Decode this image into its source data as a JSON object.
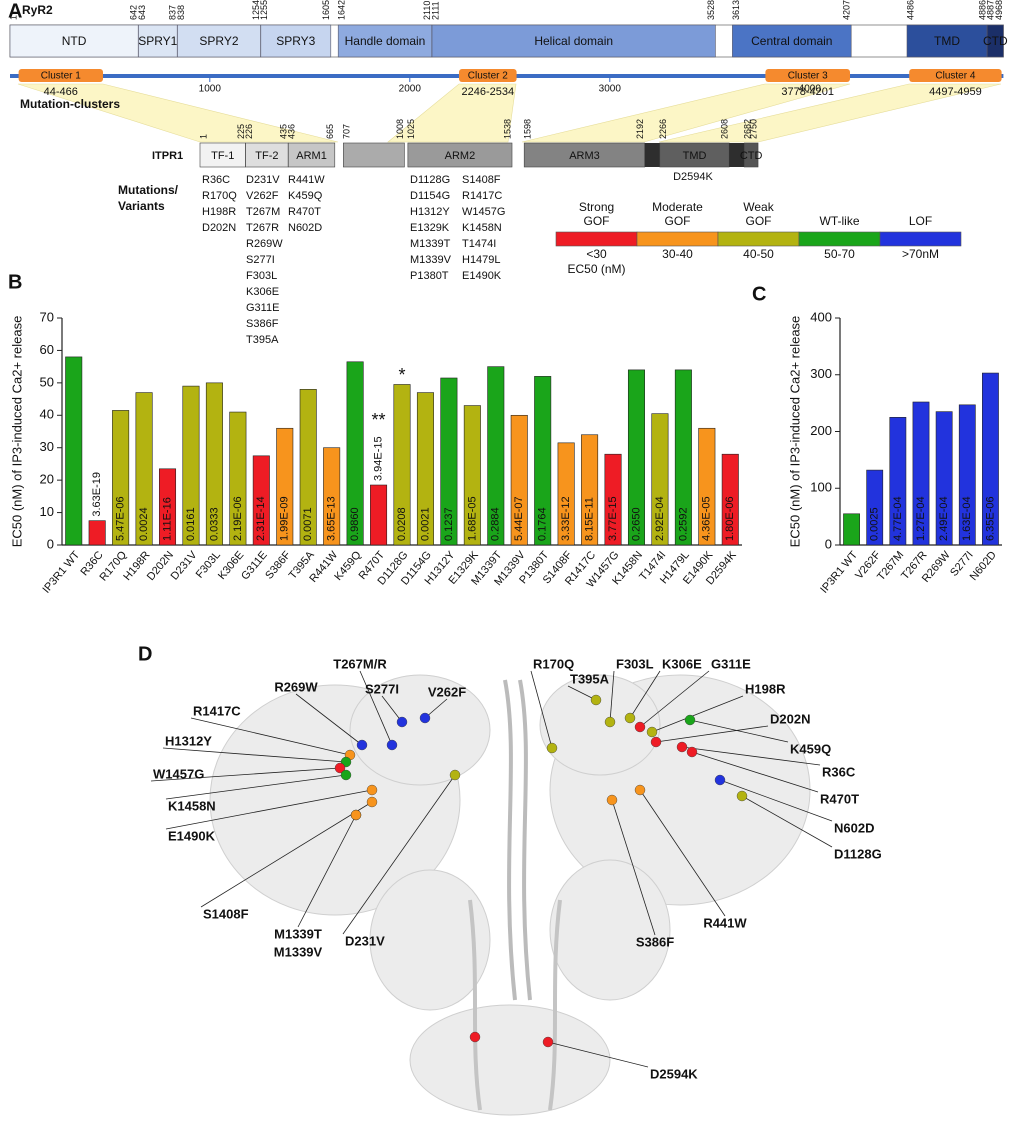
{
  "panel_labels": [
    "A",
    "B",
    "C",
    "D"
  ],
  "ryr2": {
    "name": "RyR2",
    "domains": [
      {
        "label": "NTD",
        "start": 1,
        "end": 642,
        "color": "#eef3fa"
      },
      {
        "label": "SPRY1",
        "start": 643,
        "end": 837,
        "color": "#dbe5f4"
      },
      {
        "label": "SPRY2",
        "start": 838,
        "end": 1254,
        "color": "#d2def2"
      },
      {
        "label": "SPRY3",
        "start": 1255,
        "end": 1605,
        "color": "#c6d5ef"
      },
      {
        "label": "Handle domain",
        "start": 1642,
        "end": 2110,
        "color": "#8eaadf"
      },
      {
        "label": "Helical domain",
        "start": 2111,
        "end": 3528,
        "color": "#7c9bd8"
      },
      {
        "label": "Central domain",
        "start": 3613,
        "end": 4207,
        "color": "#4b74c5"
      },
      {
        "label": "TMD",
        "start": 4486,
        "end": 4886,
        "color": "#2c4f9c"
      },
      {
        "label": "CTD",
        "start": 4887,
        "end": 4968,
        "color": "#1b2f68"
      }
    ],
    "axis_ticks": [
      1000,
      2000,
      3000,
      4000
    ],
    "axis_color": "#3b6cc4",
    "cluster_title": "Mutation-clusters",
    "cluster_color": "#f58a2e",
    "clusters": [
      {
        "label": "Cluster 1",
        "range": "44-466",
        "start": 44,
        "end": 466
      },
      {
        "label": "Cluster 2",
        "range": "2246-2534",
        "start": 2246,
        "end": 2534
      },
      {
        "label": "Cluster 3",
        "range": "3778-4201",
        "start": 3778,
        "end": 4201
      },
      {
        "label": "Cluster 4",
        "range": "4497-4959",
        "start": 4497,
        "end": 4959
      }
    ]
  },
  "itpr1": {
    "name": "ITPR1",
    "domains": [
      {
        "label": "TF-1",
        "start": 1,
        "end": 225,
        "color": "#f2f2f2"
      },
      {
        "label": "TF-2",
        "start": 226,
        "end": 435,
        "color": "#dedede"
      },
      {
        "label": "ARM1",
        "start": 436,
        "end": 665,
        "color": "#c6c6c6"
      },
      {
        "label": null,
        "start": 707,
        "end": 1008,
        "color": "#ababab"
      },
      {
        "label": "ARM2",
        "start": 1025,
        "end": 1538,
        "color": "#9a9a9a"
      },
      {
        "label": "ARM3",
        "start": 1598,
        "end": 2192,
        "color": "#838383"
      },
      {
        "label": "TMD",
        "start": 2266,
        "end": 2608,
        "color": "#5f5f5f",
        "gap_before_color": "#2e2e2e"
      },
      {
        "label": "CTD",
        "start": 2682,
        "end": 2750,
        "color": "#555555",
        "gap_before_color": "#2e2e2e"
      }
    ],
    "tmd_mutation": {
      "name": "D2594K",
      "color": "#ee1c25"
    }
  },
  "mutation_title": [
    "Mutations/",
    "Variants"
  ],
  "mutation_columns": [
    [
      {
        "name": "R36C",
        "color": "#ee1c25"
      },
      {
        "name": "R170Q",
        "color": "#b3b311"
      },
      {
        "name": "H198R",
        "color": "#b3b311"
      },
      {
        "name": "D202N",
        "color": "#ee1c25"
      }
    ],
    [
      {
        "name": "D231V",
        "color": "#b3b311"
      },
      {
        "name": "V262F",
        "color": "#2233dd"
      },
      {
        "name": "T267M",
        "color": "#2233dd"
      },
      {
        "name": "T267R",
        "color": "#2233dd"
      },
      {
        "name": "R269W",
        "color": "#2233dd"
      },
      {
        "name": "S277I",
        "color": "#2233dd"
      },
      {
        "name": "F303L",
        "color": "#b3b311"
      },
      {
        "name": "K306E",
        "color": "#b3b311"
      },
      {
        "name": "G311E",
        "color": "#ee1c25"
      },
      {
        "name": "S386F",
        "color": "#f7941d"
      },
      {
        "name": "T395A",
        "color": "#b3b311"
      }
    ],
    [
      {
        "name": "R441W",
        "color": "#f7941d"
      },
      {
        "name": "K459Q",
        "color": "#1aa51a"
      },
      {
        "name": "R470T",
        "color": "#ee1c25"
      },
      {
        "name": "N602D",
        "color": "#2233dd"
      }
    ],
    [
      {
        "name": "D1128G",
        "color": "#b3b311"
      },
      {
        "name": "D1154G",
        "color": "#b3b311"
      },
      {
        "name": "H1312Y",
        "color": "#1aa51a"
      },
      {
        "name": "E1329K",
        "color": "#b3b311"
      },
      {
        "name": "M1339T",
        "color": "#1aa51a"
      },
      {
        "name": "M1339V",
        "color": "#f7941d"
      },
      {
        "name": "P1380T",
        "color": "#1aa51a"
      }
    ],
    [
      {
        "name": "S1408F",
        "color": "#f7941d"
      },
      {
        "name": "R1417C",
        "color": "#f7941d"
      },
      {
        "name": "W1457G",
        "color": "#ee1c25"
      },
      {
        "name": "K1458N",
        "color": "#1aa51a"
      },
      {
        "name": "T1474I",
        "color": "#b3b311"
      },
      {
        "name": "H1479L",
        "color": "#1aa51a"
      },
      {
        "name": "E1490K",
        "color": "#f7941d"
      }
    ]
  ],
  "legend": {
    "unit": "EC50 (nM)",
    "items": [
      {
        "lines": [
          "Strong",
          "GOF"
        ],
        "range": "<30",
        "color": "#ee1c25"
      },
      {
        "lines": [
          "Moderate",
          "GOF"
        ],
        "range": "30-40",
        "color": "#f7941d"
      },
      {
        "lines": [
          "Weak",
          "GOF"
        ],
        "range": "40-50",
        "color": "#b3b311"
      },
      {
        "lines": [
          "WT-like"
        ],
        "range": "50-70",
        "color": "#1aa51a"
      },
      {
        "lines": [
          "LOF"
        ],
        "range": ">70nM",
        "color": "#2233dd"
      }
    ]
  },
  "chart_data": [
    {
      "type": "bar",
      "ylabel": "EC50 (nM) of IP3-induced Ca2+ release",
      "categories": [
        "IP3R1 WT",
        "R36C",
        "R170Q",
        "H198R",
        "D202N",
        "D231V",
        "F303L",
        "K306E",
        "G311E",
        "S386F",
        "T395A",
        "R441W",
        "K459Q",
        "R470T",
        "D1128G",
        "D1154G",
        "H1312Y",
        "E1329K",
        "M1339T",
        "M1339V",
        "P1380T",
        "S1408F",
        "R1417C",
        "W1457G",
        "K1458N",
        "T1474I",
        "H1479L",
        "E1490K",
        "D2594K"
      ],
      "values": [
        58,
        7.5,
        41.5,
        47,
        23.5,
        49,
        50,
        41,
        27.5,
        36,
        48,
        30,
        56.5,
        18.5,
        49.5,
        47,
        51.5,
        43,
        55,
        40,
        52,
        31.5,
        34,
        28,
        54,
        40.5,
        54,
        36,
        28
      ],
      "colors": [
        "#1aa51a",
        "#ee1c25",
        "#b3b311",
        "#b3b311",
        "#ee1c25",
        "#b3b311",
        "#b3b311",
        "#b3b311",
        "#ee1c25",
        "#f7941d",
        "#b3b311",
        "#f7941d",
        "#1aa51a",
        "#ee1c25",
        "#b3b311",
        "#b3b311",
        "#1aa51a",
        "#b3b311",
        "#1aa51a",
        "#f7941d",
        "#1aa51a",
        "#f7941d",
        "#f7941d",
        "#ee1c25",
        "#1aa51a",
        "#b3b311",
        "#1aa51a",
        "#f7941d",
        "#ee1c25"
      ],
      "p_values": [
        null,
        "3.63E-19",
        "5.47E-06",
        "0.0024",
        "1.11E-16",
        "0.0161",
        "0.0333",
        "2.19E-06",
        "2.31E-14",
        "1.99E-09",
        "0.0071",
        "3.65E-13",
        "0.9860",
        "3.94E-15",
        "0.0208",
        "0.0021",
        "0.1237",
        "1.68E-05",
        "0.2884",
        "5.44E-07",
        "0.1764",
        "3.33E-12",
        "8.15E-11",
        "3.77E-15",
        "0.2650",
        "2.92E-04",
        "0.2592",
        "4.36E-05",
        "1.80E-06"
      ],
      "significance": [
        null,
        null,
        null,
        null,
        null,
        null,
        null,
        null,
        null,
        null,
        null,
        null,
        null,
        "**",
        "*",
        null,
        null,
        null,
        null,
        null,
        null,
        null,
        null,
        null,
        null,
        null,
        null,
        null,
        null
      ],
      "p_value_color": "#111111",
      "ylim": [
        0,
        70
      ],
      "yticks": [
        0,
        10,
        20,
        30,
        40,
        50,
        60,
        70
      ]
    },
    {
      "type": "bar",
      "ylabel": "EC50 (nM) of IP3-induced Ca2+ release",
      "categories": [
        "IP3R1 WT",
        "V262F",
        "T267M",
        "T267R",
        "R269W",
        "S277I",
        "N602D"
      ],
      "values": [
        55,
        132,
        225,
        252,
        235,
        247,
        303
      ],
      "colors": [
        "#1aa51a",
        "#2233dd",
        "#2233dd",
        "#2233dd",
        "#2233dd",
        "#2233dd",
        "#2233dd"
      ],
      "p_values": [
        null,
        "0.0025",
        "4.77E-04",
        "1.27E-04",
        "2.49E-04",
        "1.63E-04",
        "6.35E-06"
      ],
      "p_value_color": "#ffffff",
      "ylim": [
        0,
        400
      ],
      "yticks": [
        0,
        100,
        200,
        300,
        400
      ]
    }
  ],
  "structure_labels": [
    {
      "name": "T267M/R",
      "color": "#2233dd"
    },
    {
      "name": "R269W",
      "color": "#2233dd"
    },
    {
      "name": "S277I",
      "color": "#2233dd"
    },
    {
      "name": "V262F",
      "color": "#2233dd"
    },
    {
      "name": "R1417C",
      "color": "#f7941d"
    },
    {
      "name": "H1312Y",
      "color": "#1aa51a"
    },
    {
      "name": "W1457G",
      "color": "#ee1c25"
    },
    {
      "name": "K1458N",
      "color": "#1aa51a"
    },
    {
      "name": "E1490K",
      "color": "#f7941d"
    },
    {
      "name": "S1408F",
      "color": "#f7941d"
    },
    {
      "name": "M1339T",
      "color": "#1aa51a"
    },
    {
      "name": "M1339V",
      "color": "#f7941d"
    },
    {
      "name": "D231V",
      "color": "#b3b311"
    },
    {
      "name": "R170Q",
      "color": "#b3b311"
    },
    {
      "name": "T395A",
      "color": "#b3b311"
    },
    {
      "name": "F303L",
      "color": "#b3b311"
    },
    {
      "name": "K306E",
      "color": "#b3b311"
    },
    {
      "name": "G311E",
      "color": "#ee1c25"
    },
    {
      "name": "H198R",
      "color": "#b3b311"
    },
    {
      "name": "D202N",
      "color": "#ee1c25"
    },
    {
      "name": "K459Q",
      "color": "#1aa51a"
    },
    {
      "name": "R36C",
      "color": "#ee1c25"
    },
    {
      "name": "R470T",
      "color": "#ee1c25"
    },
    {
      "name": "N602D",
      "color": "#2233dd"
    },
    {
      "name": "D1128G",
      "color": "#b3b311"
    },
    {
      "name": "S386F",
      "color": "#f7941d"
    },
    {
      "name": "R441W",
      "color": "#f7941d"
    },
    {
      "name": "D2594K",
      "color": "#ee1c25"
    }
  ]
}
